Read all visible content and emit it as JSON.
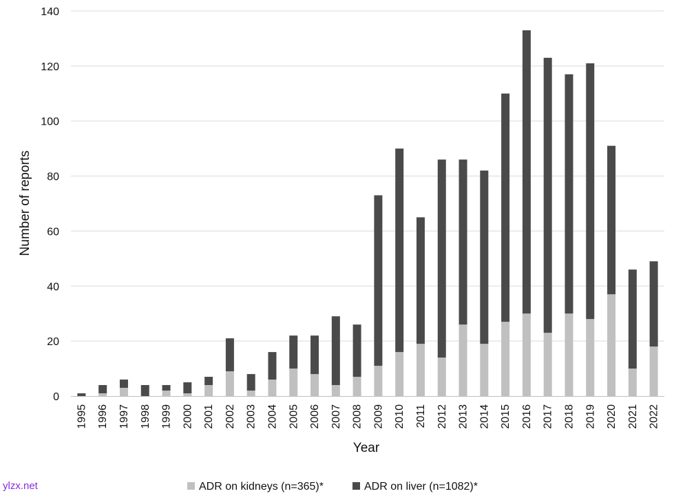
{
  "watermark": "ylzx.net",
  "chart_data": {
    "type": "bar",
    "stacked": true,
    "title": "",
    "xlabel": "Year",
    "ylabel": "Number of reports",
    "ylim": [
      0,
      140
    ],
    "yticks": [
      0,
      20,
      40,
      60,
      80,
      100,
      120,
      140
    ],
    "grid": true,
    "legend_position": "bottom",
    "categories": [
      "1995",
      "1996",
      "1997",
      "1998",
      "1999",
      "2000",
      "2001",
      "2002",
      "2003",
      "2004",
      "2005",
      "2006",
      "2007",
      "2008",
      "2009",
      "2010",
      "2011",
      "2012",
      "2013",
      "2014",
      "2015",
      "2016",
      "2017",
      "2018",
      "2019",
      "2020",
      "2021",
      "2022"
    ],
    "series": [
      {
        "name": "ADR on kidneys (n=365)*",
        "color": "#c0c0c0",
        "values": [
          0,
          1,
          3,
          0,
          2,
          1,
          4,
          9,
          2,
          6,
          10,
          8,
          4,
          7,
          11,
          16,
          19,
          14,
          26,
          19,
          27,
          30,
          23,
          30,
          28,
          37,
          10,
          18
        ]
      },
      {
        "name": "ADR on liver (n=1082)*",
        "color": "#4a4a4a",
        "values": [
          1,
          3,
          3,
          4,
          2,
          4,
          3,
          12,
          6,
          10,
          12,
          14,
          25,
          19,
          62,
          74,
          46,
          72,
          60,
          63,
          83,
          103,
          100,
          87,
          93,
          54,
          36,
          31
        ]
      }
    ]
  }
}
